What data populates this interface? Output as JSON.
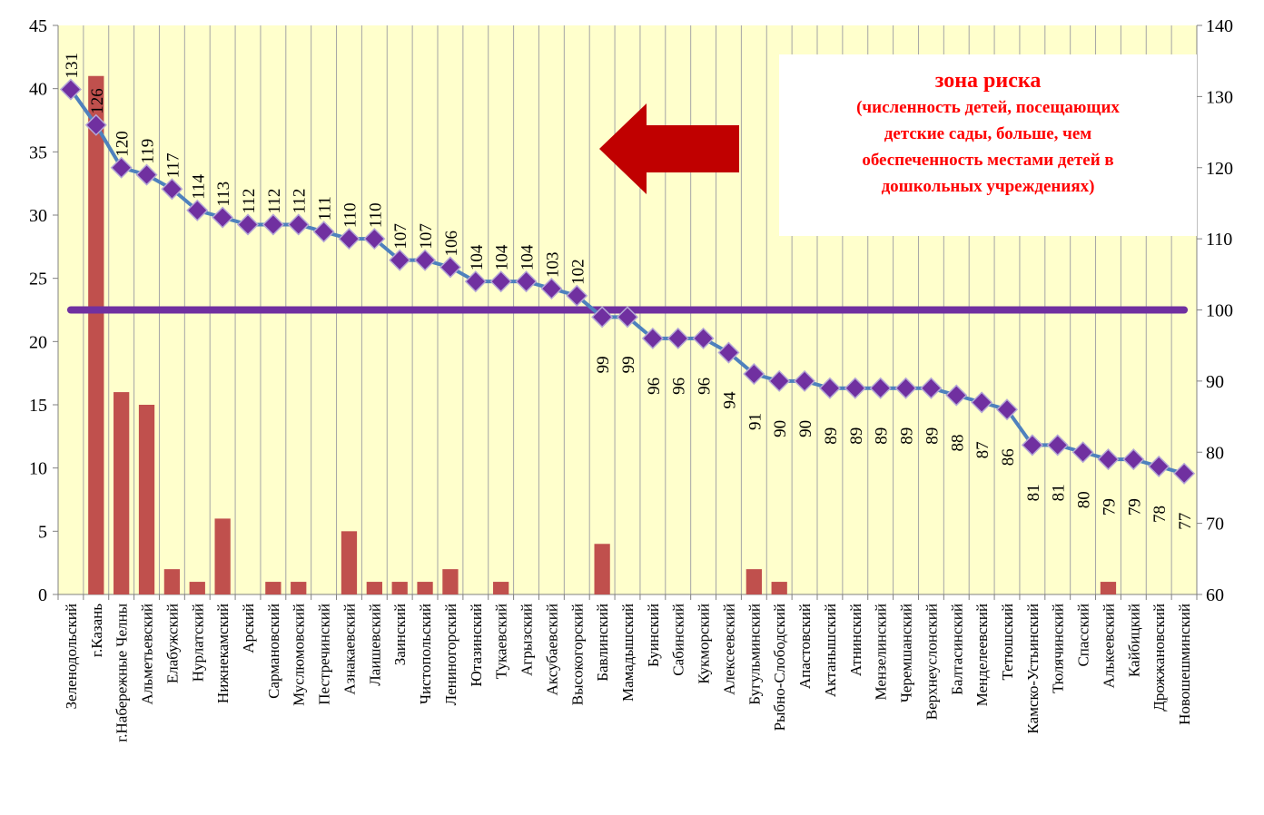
{
  "chart_data": {
    "type": "bar+line",
    "categories": [
      "Зеленодольский",
      "г.Казань",
      "г.Набережные Челны",
      "Альметьевский",
      "Елабужский",
      "Нурлатский",
      "Нижнекамский",
      "Арский",
      "Сармановский",
      "Муслюмовский",
      "Пестречинский",
      "Азнакаевский",
      "Лаишевский",
      "Заинский",
      "Чистопольский",
      "Лениногорский",
      "Ютазинский",
      "Тукаевский",
      "Агрызский",
      "Аксубаевский",
      "Высокогорский",
      "Бавлинский",
      "Мамадышский",
      "Буинский",
      "Сабинский",
      "Кукморский",
      "Алексеевский",
      "Бугульминский",
      "Рыбно-Слободский",
      "Апастовский",
      "Актанышский",
      "Атнинский",
      "Мензелинский",
      "Черемшанский",
      "Верхнеуслонский",
      "Балтасинский",
      "Менделеевский",
      "Тетюшский",
      "Камско-Устьинский",
      "Тюлячинский",
      "Спасский",
      "Алькеевский",
      "Кайбицкий",
      "Дрожжановский",
      "Новошешминский"
    ],
    "series": [
      {
        "axis": "left",
        "kind": "bar",
        "color": "#c0504d",
        "values": [
          0,
          41,
          16,
          15,
          2,
          1,
          6,
          0,
          1,
          1,
          0,
          5,
          1,
          1,
          1,
          2,
          0,
          1,
          0,
          0,
          0,
          4,
          0,
          0,
          0,
          0,
          0,
          2,
          1,
          0,
          0,
          0,
          0,
          0,
          0,
          0,
          0,
          0,
          0,
          0,
          0,
          1,
          0,
          0,
          0
        ]
      },
      {
        "axis": "right",
        "kind": "line",
        "color": "#4f81bd",
        "marker_color": "#7030a0",
        "values": [
          131,
          126,
          120,
          119,
          117,
          114,
          113,
          112,
          112,
          112,
          111,
          110,
          110,
          107,
          107,
          106,
          104,
          104,
          104,
          103,
          102,
          99,
          99,
          96,
          96,
          96,
          94,
          91,
          90,
          90,
          89,
          89,
          89,
          89,
          89,
          88,
          87,
          86,
          81,
          81,
          80,
          79,
          79,
          78,
          77
        ]
      },
      {
        "axis": "right",
        "kind": "reference-line",
        "color": "#7030a0",
        "value": 100
      }
    ],
    "left_axis": {
      "min": 0,
      "max": 45,
      "step": 5
    },
    "right_axis": {
      "min": 60,
      "max": 140,
      "step": 10
    },
    "grid": "vertical",
    "plot_background": "#ffffcc",
    "arrow": {
      "color": "#c00000",
      "direction": "left"
    },
    "annotation": {
      "title": "зона риска",
      "lines": [
        "(численность детей, посещающих",
        "детские сады, больше, чем",
        "обеспеченность местами детей в",
        "дошкольных учреждениях)"
      ],
      "color": "#ff0000"
    }
  }
}
